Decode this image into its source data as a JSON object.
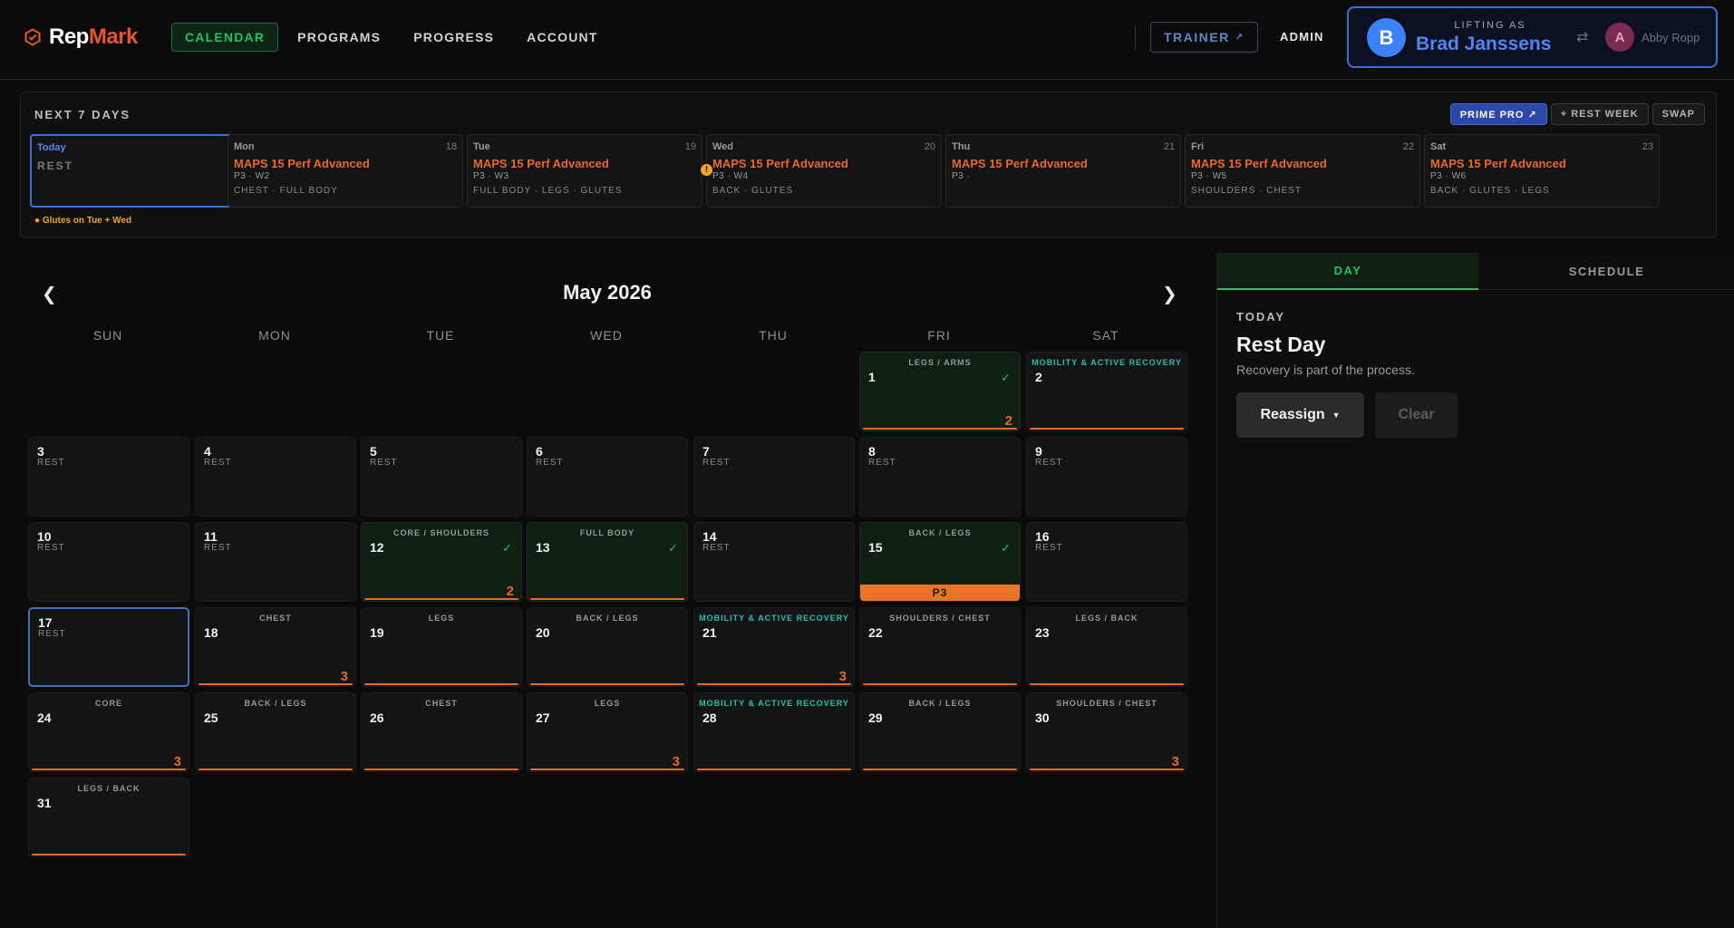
{
  "brand": {
    "rep": "Rep",
    "mark": "Mark",
    "accent": "#e8542c"
  },
  "nav": {
    "tabs": [
      "CALENDAR",
      "PROGRAMS",
      "PROGRESS",
      "ACCOUNT"
    ],
    "active": "CALENDAR",
    "trainer": "TRAINER",
    "admin": "ADMIN"
  },
  "lifting_as": {
    "label": "LIFTING AS",
    "initial": "B",
    "name": "Brad Janssens",
    "other_initial": "A",
    "other_name": "Abby Ropp"
  },
  "next7": {
    "title": "NEXT 7 DAYS",
    "buttons": [
      "PRIME PRO ↗",
      "+ REST WEEK",
      "SWAP"
    ],
    "days": [
      {
        "dow": "Today",
        "num": "17",
        "rest": "REST"
      },
      {
        "dow": "Mon",
        "num": "18",
        "title": "MAPS 15 Perf Advanced",
        "sub": "P3 · W2",
        "tags": "CHEST · FULL BODY"
      },
      {
        "dow": "Tue",
        "num": "19",
        "title": "MAPS 15 Perf Advanced",
        "sub": "P3 · W3",
        "tags": "FULL BODY · LEGS · GLUTES"
      },
      {
        "dow": "Wed",
        "num": "20",
        "title": "MAPS 15 Perf Advanced",
        "sub": "P3 · W4",
        "tags": "BACK · GLUTES",
        "warn": "!"
      },
      {
        "dow": "Thu",
        "num": "21",
        "title": "MAPS 15 Perf Advanced",
        "sub": "P3 ·",
        "tags": ""
      },
      {
        "dow": "Fri",
        "num": "22",
        "title": "MAPS 15 Perf Advanced",
        "sub": "P3 · W5",
        "tags": "SHOULDERS · CHEST"
      },
      {
        "dow": "Sat",
        "num": "23",
        "title": "MAPS 15 Perf Advanced",
        "sub": "P3 · W6",
        "tags": "BACK · GLUTES · LEGS"
      }
    ],
    "note": "● Glutes on Tue + Wed"
  },
  "calendar": {
    "month": "May 2026",
    "prev": "❮",
    "next": "❯",
    "weekdays": [
      "SUN",
      "MON",
      "TUE",
      "WED",
      "THU",
      "FRI",
      "SAT"
    ],
    "days": [
      {
        "n": "1",
        "label": "LEGS / ARMS",
        "done": true,
        "line": true,
        "badge": "2"
      },
      {
        "n": "2",
        "label": "MOBILITY & ACTIVE RECOVERY",
        "mob": true,
        "line": true
      },
      {
        "n": "3",
        "rest": "REST"
      },
      {
        "n": "4",
        "rest": "REST"
      },
      {
        "n": "5",
        "rest": "REST"
      },
      {
        "n": "6",
        "rest": "REST"
      },
      {
        "n": "7",
        "rest": "REST"
      },
      {
        "n": "8",
        "rest": "REST"
      },
      {
        "n": "9",
        "rest": "REST"
      },
      {
        "n": "10",
        "rest": "REST"
      },
      {
        "n": "11",
        "rest": "REST"
      },
      {
        "n": "12",
        "label": "CORE / SHOULDERS",
        "done": true,
        "line": true,
        "badge": "2"
      },
      {
        "n": "13",
        "label": "FULL BODY",
        "done": true,
        "line": true
      },
      {
        "n": "14",
        "rest": "REST"
      },
      {
        "n": "15",
        "label": "BACK / LEGS",
        "done": true,
        "bar": "P3"
      },
      {
        "n": "16",
        "rest": "REST"
      },
      {
        "n": "17",
        "rest": "REST",
        "today": true
      },
      {
        "n": "18",
        "label": "CHEST",
        "line": true,
        "badge": "3"
      },
      {
        "n": "19",
        "label": "LEGS",
        "line": true
      },
      {
        "n": "20",
        "label": "BACK / LEGS",
        "line": true
      },
      {
        "n": "21",
        "label": "MOBILITY & ACTIVE RECOVERY",
        "mob": true,
        "line": true,
        "badge": "3"
      },
      {
        "n": "22",
        "label": "SHOULDERS / CHEST",
        "line": true
      },
      {
        "n": "23",
        "label": "LEGS / BACK",
        "line": true
      },
      {
        "n": "24",
        "label": "CORE",
        "line": true,
        "badge": "3"
      },
      {
        "n": "25",
        "label": "BACK / LEGS",
        "line": true
      },
      {
        "n": "26",
        "label": "CHEST",
        "line": true
      },
      {
        "n": "27",
        "label": "LEGS",
        "line": true,
        "badge": "3"
      },
      {
        "n": "28",
        "label": "MOBILITY & ACTIVE RECOVERY",
        "mob": true,
        "line": true
      },
      {
        "n": "29",
        "label": "BACK / LEGS",
        "line": true
      },
      {
        "n": "30",
        "label": "SHOULDERS / CHEST",
        "line": true,
        "badge": "3"
      },
      {
        "n": "31",
        "label": "LEGS / BACK",
        "line": true
      }
    ]
  },
  "panel": {
    "tabs": [
      "DAY",
      "SCHEDULE"
    ],
    "today": "TODAY",
    "title": "Rest Day",
    "desc": "Recovery is part of the process.",
    "reassign": "Reassign",
    "clear": "Clear"
  }
}
